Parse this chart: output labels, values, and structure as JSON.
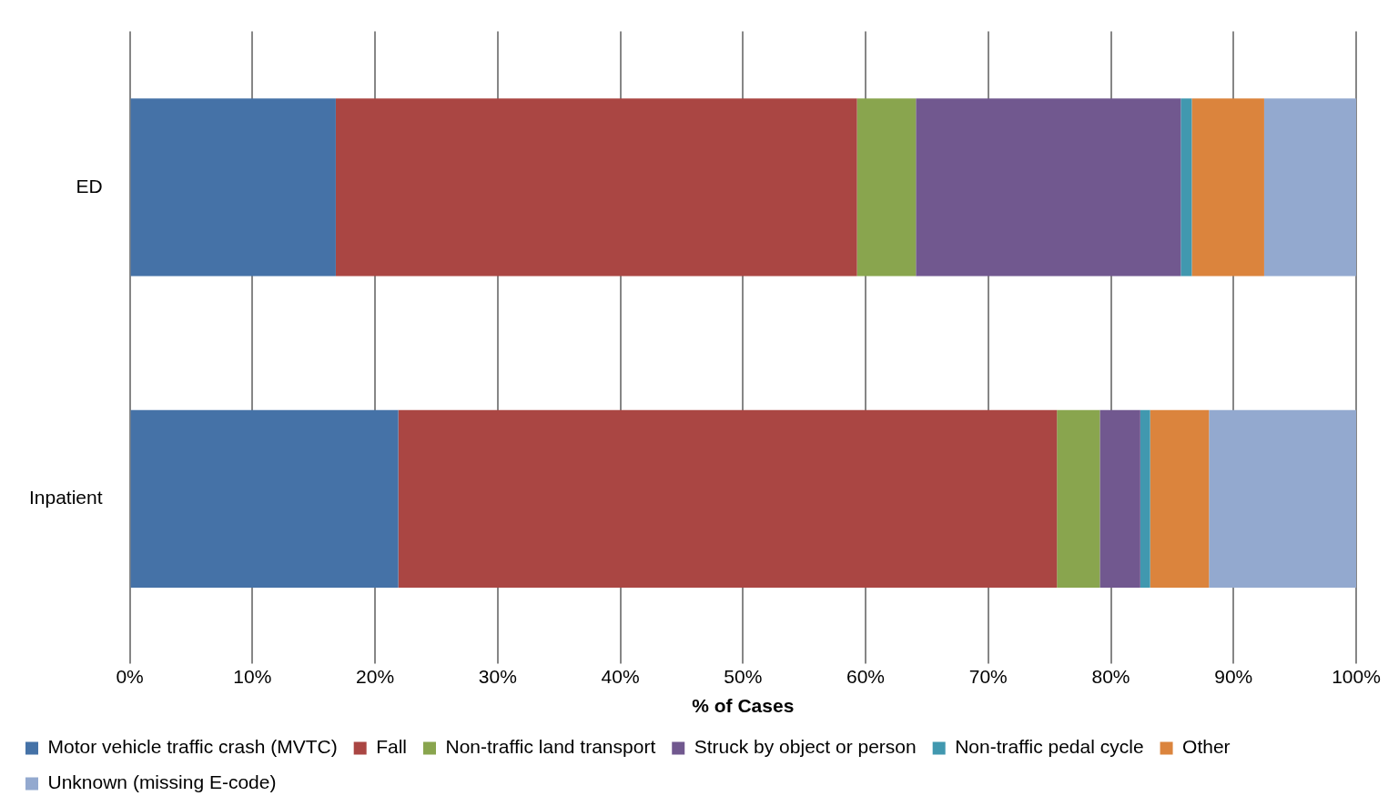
{
  "chart_data": {
    "type": "bar",
    "orientation": "horizontal",
    "stacked": true,
    "categories": [
      "ED",
      "Inpatient"
    ],
    "series": [
      {
        "name": "Motor vehicle traffic crash (MVTC)",
        "color": "#4572a7",
        "values": [
          16.8,
          21.9
        ]
      },
      {
        "name": "Fall",
        "color": "#aa4643",
        "values": [
          42.5,
          53.7
        ]
      },
      {
        "name": "Non-traffic land transport",
        "color": "#89a54e",
        "values": [
          4.8,
          3.5
        ]
      },
      {
        "name": "Struck by object or person",
        "color": "#71588f",
        "values": [
          21.6,
          3.3
        ]
      },
      {
        "name": "Non-traffic pedal cycle",
        "color": "#4198af",
        "values": [
          0.9,
          0.8
        ]
      },
      {
        "name": "Other",
        "color": "#db843d",
        "values": [
          5.9,
          4.8
        ]
      },
      {
        "name": "Unknown (missing E-code)",
        "color": "#93a9cf",
        "values": [
          7.5,
          12.0
        ]
      }
    ],
    "xlabel": "% of Cases",
    "xlim": [
      0,
      100
    ],
    "xticks": [
      {
        "value": 0,
        "label": "0%"
      },
      {
        "value": 10,
        "label": "10%"
      },
      {
        "value": 20,
        "label": "20%"
      },
      {
        "value": 30,
        "label": "30%"
      },
      {
        "value": 40,
        "label": "40%"
      },
      {
        "value": 50,
        "label": "50%"
      },
      {
        "value": 60,
        "label": "60%"
      },
      {
        "value": 70,
        "label": "70%"
      },
      {
        "value": 80,
        "label": "80%"
      },
      {
        "value": 90,
        "label": "90%"
      },
      {
        "value": 100,
        "label": "100%"
      }
    ],
    "grid": "x",
    "legend": "bottom"
  }
}
